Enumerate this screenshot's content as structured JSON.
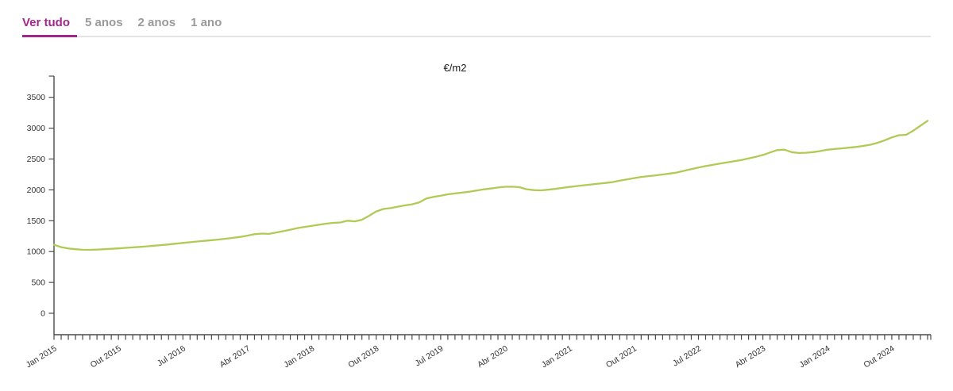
{
  "tabs": {
    "items": [
      {
        "label": "Ver tudo",
        "active": true
      },
      {
        "label": "5 anos",
        "active": false
      },
      {
        "label": "2 anos",
        "active": false
      },
      {
        "label": "1 ano",
        "active": false
      }
    ]
  },
  "colors": {
    "accent": "#a2268b",
    "tab_inactive": "#9a9a9a",
    "line": "#b1ca55",
    "axis": "#4a4a4a",
    "tab_track": "#e4e4e4"
  },
  "chart_data": {
    "type": "line",
    "title": "€/m2",
    "ylabel": "",
    "xlabel": "",
    "grid": false,
    "legend": false,
    "x_start": "Jan 2015",
    "x_end": "Mar 2025",
    "x_frequency": "monthly",
    "x_tick_every_months": 9,
    "x_tick_labels": [
      "Jan 2015",
      "Out 2015",
      "Jul 2016",
      "Abr 2017",
      "Jan 2018",
      "Out 2018",
      "Jul 2019",
      "Abr 2020",
      "Jan 2021",
      "Out 2021",
      "Jul 2022",
      "Abr 2023",
      "Jan 2024",
      "Out 2024"
    ],
    "y_ticks": [
      0,
      500,
      1000,
      1500,
      2000,
      2500,
      3000,
      3500
    ],
    "ylim": [
      0,
      3880
    ],
    "series": [
      {
        "name": "€/m2",
        "color": "#b1ca55",
        "values": [
          1110,
          1072,
          1050,
          1038,
          1030,
          1028,
          1032,
          1038,
          1045,
          1052,
          1060,
          1068,
          1076,
          1085,
          1095,
          1105,
          1116,
          1128,
          1140,
          1152,
          1163,
          1174,
          1185,
          1196,
          1208,
          1222,
          1238,
          1258,
          1282,
          1292,
          1286,
          1308,
          1330,
          1355,
          1380,
          1400,
          1418,
          1435,
          1452,
          1465,
          1472,
          1500,
          1490,
          1515,
          1580,
          1650,
          1690,
          1705,
          1728,
          1748,
          1766,
          1795,
          1860,
          1885,
          1905,
          1928,
          1942,
          1955,
          1970,
          1990,
          2008,
          2022,
          2038,
          2050,
          2052,
          2044,
          2010,
          1996,
          1992,
          2002,
          2016,
          2032,
          2048,
          2062,
          2075,
          2088,
          2100,
          2112,
          2126,
          2150,
          2170,
          2190,
          2210,
          2222,
          2235,
          2250,
          2265,
          2282,
          2308,
          2335,
          2362,
          2385,
          2405,
          2425,
          2445,
          2465,
          2485,
          2510,
          2535,
          2565,
          2605,
          2645,
          2652,
          2612,
          2598,
          2602,
          2612,
          2628,
          2650,
          2662,
          2672,
          2684,
          2696,
          2712,
          2732,
          2762,
          2802,
          2850,
          2885,
          2892,
          2960,
          3040,
          3120
        ]
      }
    ]
  }
}
